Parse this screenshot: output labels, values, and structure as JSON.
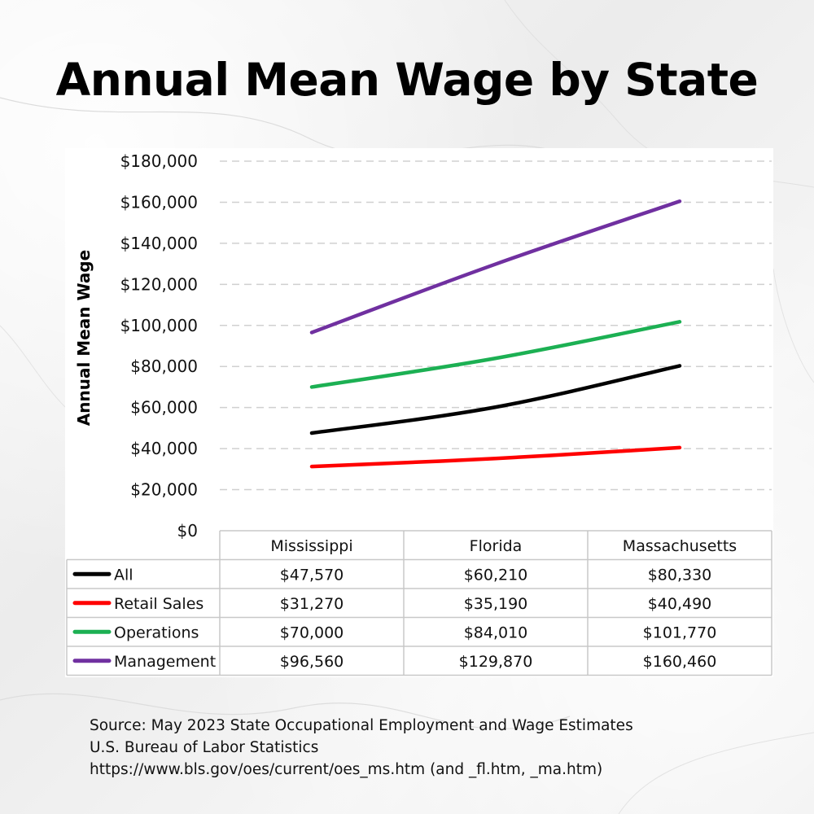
{
  "title": "Annual Mean Wage by State",
  "chart_data": {
    "type": "line",
    "title": "Annual Mean Wage by State",
    "xlabel": "",
    "ylabel": "Annual Mean Wage",
    "ylim": [
      0,
      180000
    ],
    "yticks": [
      "$0",
      "$20,000",
      "$40,000",
      "$60,000",
      "$80,000",
      "$100,000",
      "$120,000",
      "$140,000",
      "$160,000",
      "$180,000"
    ],
    "grid": true,
    "categories": [
      "Mississippi",
      "Florida",
      "Massachusetts"
    ],
    "series": [
      {
        "name": "All",
        "color": "#000000",
        "values": [
          47570,
          60210,
          80330
        ],
        "labels": [
          "$47,570",
          "$60,210",
          "$80,330"
        ]
      },
      {
        "name": "Retail Sales",
        "color": "#ff0000",
        "values": [
          31270,
          35190,
          40490
        ],
        "labels": [
          "$31,270",
          "$35,190",
          "$40,490"
        ]
      },
      {
        "name": "Operations",
        "color": "#1cb053",
        "values": [
          70000,
          84010,
          101770
        ],
        "labels": [
          "$70,000",
          "$84,010",
          "$101,770"
        ]
      },
      {
        "name": "Management",
        "color": "#7030a0",
        "values": [
          96560,
          129870,
          160460
        ],
        "labels": [
          "$96,560",
          "$129,870",
          "$160,460"
        ]
      }
    ]
  },
  "source": {
    "line1": "Source: May 2023 State Occupational Employment and Wage Estimates",
    "line2": "U.S. Bureau of Labor Statistics",
    "line3": "https://www.bls.gov/oes/current/oes_ms.htm (and _fl.htm, _ma.htm)"
  }
}
